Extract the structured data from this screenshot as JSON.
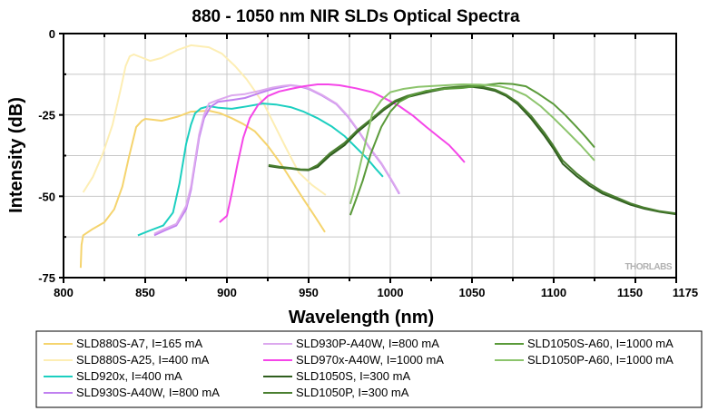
{
  "chart_data": {
    "type": "line",
    "title": "880 - 1050 nm  NIR SLDs Optical Spectra",
    "xlabel": "Wavelength (nm)",
    "ylabel": "Intensity (dB)",
    "xlim": [
      800,
      1175
    ],
    "ylim": [
      -75,
      0
    ],
    "xticks": [
      800,
      850,
      900,
      950,
      1000,
      1050,
      1100,
      1150,
      1175
    ],
    "xtick_labels": [
      "800",
      "850",
      "900",
      "950",
      "1000",
      "1050",
      "1100",
      "1150",
      "1175"
    ],
    "xminor_step": 25,
    "yticks": [
      0,
      -25,
      -50,
      -75
    ],
    "ytick_labels": [
      "0",
      "-25",
      "-50",
      "-75"
    ],
    "yminor_step": 12.5,
    "grid": true,
    "legend_position": "bottom",
    "watermark": "THORLABS",
    "series": [
      {
        "name": "SLD880S-A7, I=165 mA",
        "color": "#f5d46e",
        "x": [
          810.5,
          811,
          812,
          818,
          825,
          831,
          836,
          840,
          844.5,
          848,
          850,
          855,
          860,
          870,
          878,
          889,
          896,
          903,
          910,
          917,
          925,
          933,
          940,
          947,
          954,
          960
        ],
        "y": [
          -72,
          -65,
          -62,
          -60,
          -58,
          -54,
          -47,
          -38,
          -28.7,
          -26.8,
          -26.2,
          -26.5,
          -26.8,
          -25.5,
          -24,
          -23.7,
          -24.5,
          -26,
          -27.8,
          -30,
          -34.5,
          -40,
          -45.5,
          -51,
          -56.3,
          -61
        ]
      },
      {
        "name": "SLD880S-A25, I=400 mA",
        "color": "#fdeeb4",
        "x": [
          812,
          818,
          824,
          830,
          835,
          838,
          840.5,
          843,
          848,
          853,
          860,
          870,
          878,
          889,
          897,
          905,
          912,
          917,
          923,
          928,
          936,
          944,
          952,
          960.5
        ],
        "y": [
          -48.8,
          -44,
          -37,
          -28,
          -17,
          -10,
          -7,
          -6.4,
          -7.4,
          -8.4,
          -7.5,
          -5,
          -3.6,
          -4.2,
          -6.2,
          -10,
          -14,
          -17.6,
          -22,
          -27,
          -35,
          -42.7,
          -46.5,
          -49.6
        ]
      },
      {
        "name": "SLD920x, I=400 mA",
        "color": "#1ccfc0",
        "x": [
          845.5,
          853,
          861,
          867,
          871,
          875,
          878,
          880.5,
          884,
          889,
          895,
          903,
          912,
          922,
          930,
          939,
          947,
          955.5,
          964,
          972,
          979,
          986,
          991,
          995.5
        ],
        "y": [
          -62,
          -60.5,
          -59,
          -55,
          -46,
          -34,
          -28,
          -24.5,
          -23,
          -22.3,
          -22.8,
          -23.1,
          -22.4,
          -21.5,
          -21.8,
          -22.6,
          -24,
          -26,
          -28.5,
          -31.5,
          -35,
          -38.5,
          -41.5,
          -44
        ]
      },
      {
        "name": "SLD930S-A40W, I=800 mA",
        "color": "#c080f0",
        "x": [
          855.5,
          862,
          869,
          875,
          878,
          880.5,
          883,
          886,
          890,
          894.5,
          903,
          911,
          920,
          928,
          934,
          939,
          945,
          950,
          958,
          967,
          974,
          980.5,
          987,
          994.5,
          1000,
          1005.5
        ],
        "y": [
          -62,
          -60.5,
          -59,
          -54,
          -48,
          -40,
          -32,
          -26,
          -22.5,
          -21,
          -20.4,
          -19.8,
          -18.3,
          -17,
          -16.4,
          -15.9,
          -16.3,
          -17,
          -19,
          -21.7,
          -25.5,
          -30,
          -35,
          -40,
          -44.5,
          -49.3
        ]
      },
      {
        "name": "SLD930P-A40W, I=800 mA",
        "color": "#dca8ee",
        "x": [
          855.5,
          862,
          869,
          875,
          878,
          880.5,
          883,
          886,
          889,
          894.5,
          903,
          911,
          920,
          928,
          934,
          939,
          945,
          950,
          958,
          967,
          974,
          980.5,
          987,
          994.5,
          1000,
          1005.5
        ],
        "y": [
          -61.5,
          -60,
          -58.5,
          -53,
          -47,
          -39,
          -31,
          -25,
          -21.5,
          -20.4,
          -19,
          -18.6,
          -17.6,
          -16.6,
          -16.1,
          -15.8,
          -16.2,
          -16.8,
          -18.8,
          -21.5,
          -25.3,
          -29.8,
          -34.8,
          -39.8,
          -44.3,
          -49
        ]
      },
      {
        "name": "SLD970x-A40W, I=1000 mA",
        "color": "#f545e8",
        "x": [
          895.5,
          900,
          903,
          906.5,
          910,
          914,
          919,
          925,
          932,
          939,
          947,
          955.5,
          962,
          969,
          979,
          989,
          997,
          1005.5,
          1014,
          1022,
          1029,
          1036,
          1041,
          1045.5
        ],
        "y": [
          -58,
          -56,
          -49,
          -40,
          -32,
          -26,
          -22,
          -19.2,
          -17.8,
          -17,
          -16.2,
          -15.6,
          -15.6,
          -15.9,
          -16.8,
          -18,
          -20,
          -22.3,
          -25.3,
          -28.7,
          -31.5,
          -34.3,
          -37,
          -39.6
        ]
      },
      {
        "name": "SLD1050S, I=300 mA",
        "color": "#2f5e1e",
        "x": [
          925.5,
          932,
          939,
          945,
          950,
          955.5,
          963,
          972,
          980,
          989,
          996,
          1003,
          1010,
          1017,
          1025,
          1033,
          1042,
          1050,
          1057,
          1064,
          1071,
          1078,
          1086,
          1094.5,
          1100,
          1105.5,
          1114,
          1122,
          1130,
          1139,
          1147,
          1155.5,
          1165,
          1175
        ],
        "y": [
          -40.7,
          -41.2,
          -41.5,
          -41.9,
          -42,
          -41,
          -37.5,
          -34.3,
          -30.2,
          -26.5,
          -23.5,
          -21,
          -19.6,
          -18.7,
          -17.8,
          -17,
          -16.6,
          -16.4,
          -16.8,
          -17.6,
          -19.2,
          -21.7,
          -26,
          -31.5,
          -35.5,
          -40,
          -43.8,
          -46.8,
          -49.2,
          -51,
          -52.6,
          -53.8,
          -54.8,
          -55.5
        ]
      },
      {
        "name": "SLD1050P, I=300 mA",
        "color": "#4a7f30",
        "x": [
          925.5,
          932,
          939,
          945,
          950,
          955.5,
          963,
          972,
          980,
          989,
          996,
          1003,
          1010,
          1017,
          1025,
          1033,
          1042,
          1050,
          1057,
          1064,
          1071,
          1078,
          1086,
          1094.5,
          1100,
          1105.5,
          1114,
          1122,
          1130,
          1139,
          1147,
          1155.5,
          1165,
          1175
        ],
        "y": [
          -40.4,
          -40.9,
          -41.3,
          -41.7,
          -41.8,
          -40.4,
          -36.8,
          -33.6,
          -29.6,
          -26,
          -23,
          -20.6,
          -19.2,
          -18.3,
          -17.4,
          -16.7,
          -16.3,
          -16.1,
          -16.4,
          -17.2,
          -18.8,
          -21.2,
          -25.2,
          -30.6,
          -34.6,
          -39,
          -43,
          -46.1,
          -48.6,
          -50.5,
          -52.2,
          -53.5,
          -54.6,
          -55.3
        ]
      },
      {
        "name": "SLD1050S-A60, I=1000 mA",
        "color": "#5a9a3a",
        "x": [
          975.5,
          979,
          983,
          988,
          994.5,
          1000,
          1005.5,
          1013,
          1022,
          1033,
          1044.5,
          1055,
          1067,
          1075,
          1083,
          1090,
          1100,
          1107,
          1114,
          1120,
          1125
        ],
        "y": [
          -55.8,
          -51,
          -45.4,
          -37,
          -28.7,
          -24,
          -21,
          -19,
          -17.6,
          -17,
          -16.7,
          -16,
          -15.3,
          -15.5,
          -16.2,
          -18.3,
          -21.7,
          -25,
          -28.7,
          -32,
          -35
        ]
      },
      {
        "name": "SLD1050P-A60, I=1000 mA",
        "color": "#8cc46c",
        "x": [
          975.5,
          978,
          980.5,
          985,
          989,
          994.5,
          1000,
          1008,
          1017,
          1030,
          1044.5,
          1055,
          1067,
          1075,
          1083,
          1092,
          1100,
          1108,
          1116.5,
          1121,
          1125
        ],
        "y": [
          -52.4,
          -48,
          -42.7,
          -33,
          -24.5,
          -20.5,
          -18,
          -17,
          -16.4,
          -16,
          -15.6,
          -15.7,
          -16.2,
          -17.2,
          -19,
          -22.3,
          -26,
          -30,
          -34.3,
          -36.8,
          -39
        ]
      }
    ],
    "legend_columns": [
      [
        0,
        1,
        2,
        3
      ],
      [
        4,
        5,
        6,
        7
      ],
      [
        8,
        9
      ]
    ]
  }
}
